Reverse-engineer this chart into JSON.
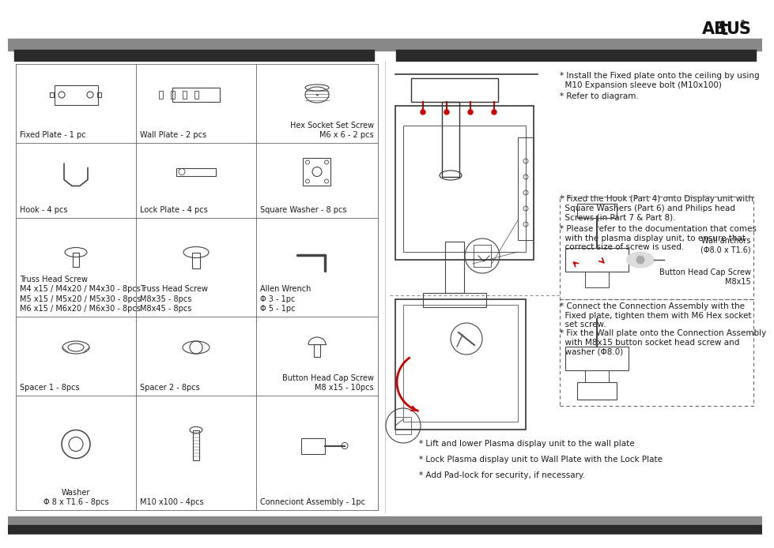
{
  "background_color": "#ffffff",
  "header_bar_color": "#666666",
  "dark_bar_color": "#2a2a2a",
  "page_width": 9.54,
  "page_height": 6.75,
  "font_size_label": 7.0,
  "font_size_instruction": 7.5,
  "grid_line_color": "#777777",
  "text_color": "#1a1a1a",
  "part_labels": {
    "0_0": "Fixed Plate - 1 pc",
    "0_1": "Wall Plate - 2 pcs",
    "0_2": "Hex Socket Set Screw\nM6 x 6 - 2 pcs",
    "1_0": "Hook - 4 pcs",
    "1_1": "Lock Plate - 4 pcs",
    "1_2": "Square Washer - 8 pcs",
    "2_0": "Truss Head Screw\nM4 x15 / M4x20 / M4x30 - 8pcs\nM5 x15 / M5x20 / M5x30 - 8pcs\nM6 x15 / M6x20 / M6x30 - 8pcs",
    "2_1": "Truss Head Screw\nM8x35 - 8pcs\nM8x45 - 8pcs",
    "2_2": "Allen Wrench\nΦ 3 - 1pc\nΦ 5 - 1pc",
    "3_0": "Spacer 1 - 8pcs",
    "3_1": "Spacer 2 - 8pcs",
    "3_2": "Button Head Cap Screw\nM8 x15 - 10pcs",
    "4_0": "Washer\nΦ 8 x T1.6 - 8pcs",
    "4_1": "M10 x100 - 4pcs",
    "4_2": "Conneciont Assembly - 1pc"
  },
  "inst1": "* Install the Fixed plate onto the ceiling by using\n  M10 Expansion sleeve bolt (M10x100)",
  "inst2": "* Refer to diagram.",
  "inst3": "* Fixed the Hook (Part 4) onto Display unit with\n  Square Washers (Part 6) and Philips head\n  Screws (in Part 7 & Part 8).",
  "inst4": "* Please refer to the documentation that comes\n  with the plasma display unit, to ensure that\n  correct size of screw is used.",
  "inst5": "* Connect the Connection Assembly with the\n  Fixed plate, tighten them with M6 Hex socket\n  set screw.",
  "inst6": "* Fix the Wall plate onto the Connection Assembly\n  with M8x15 button socket head screw and\n  washer (Φ8.0)",
  "inst7": "* Lift and lower Plasma display unit to the wall plate",
  "inst8": "* Lock Plasma display unit to Wall Plate with the Lock Plate",
  "inst9": "* Add Pad-lock for security, if necessary.",
  "wall_anchors": "Wall anchors\n(Φ8.0 x T1.6)",
  "btn_cap": "Button Head Cap Screw\nM8x15"
}
